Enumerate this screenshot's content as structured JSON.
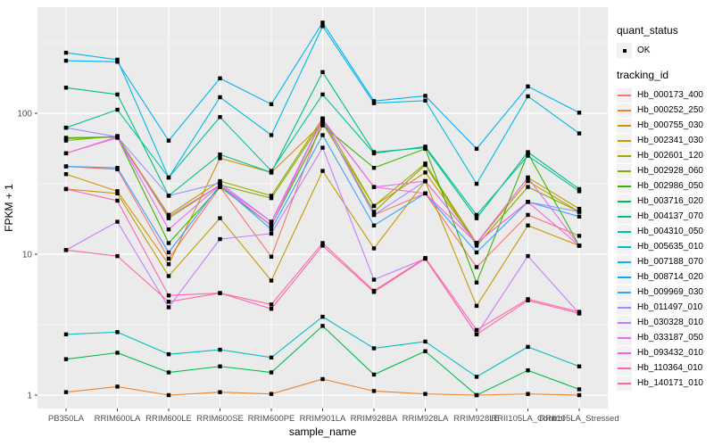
{
  "chart_data": {
    "type": "line",
    "title": "",
    "xlabel": "sample_name",
    "ylabel": "FPKM + 1",
    "yscale": "log10",
    "yticks": [
      "1",
      "10",
      "100"
    ],
    "minor_gridlines": [
      3.162,
      31.62,
      316.2
    ],
    "ylim": [
      0.8,
      570
    ],
    "legend_position": "right",
    "panel_bg": "#EBEBEB",
    "grid_color": "#FFFFFF",
    "point_color": "#000000",
    "tick_text_color": "#4D4D4D",
    "categories": [
      "PB350LA",
      "RRIM600LA",
      "RRIM600LE",
      "RRIM600SE",
      "RRIM600PE",
      "RRIM901LA",
      "RRIM928BA",
      "RRIM928LA",
      "RRIM928LE",
      "RRII105LA_Control",
      "RRII105LA_Stressed"
    ],
    "series": [
      {
        "name": "Hb_000173_400",
        "color": "#F8766D",
        "values": [
          42,
          40,
          9.3,
          30,
          9.6,
          90,
          19,
          27,
          8.1,
          19,
          13.5
        ]
      },
      {
        "name": "Hb_000252_250",
        "color": "#EA8331",
        "values": [
          1.05,
          1.15,
          1.0,
          1.05,
          1.02,
          1.3,
          1.07,
          1.02,
          1.0,
          1.02,
          1.0
        ]
      },
      {
        "name": "Hb_000755_030",
        "color": "#D89000",
        "values": [
          37,
          28,
          8.5,
          48,
          38,
          85,
          22,
          38,
          12,
          33,
          20
        ]
      },
      {
        "name": "Hb_002341_030",
        "color": "#C09B00",
        "values": [
          29,
          27,
          7.0,
          18,
          6.5,
          39,
          11,
          33,
          4.3,
          16,
          11.5
        ]
      },
      {
        "name": "Hb_002601_120",
        "color": "#A3A500",
        "values": [
          66,
          68,
          19,
          33,
          26,
          92,
          22,
          44,
          12,
          35,
          21
        ]
      },
      {
        "name": "Hb_002928_060",
        "color": "#7CAE00",
        "values": [
          64,
          69,
          18,
          31,
          25,
          88,
          20,
          43,
          11.5,
          30,
          20
        ]
      },
      {
        "name": "Hb_002986_050",
        "color": "#39B600",
        "values": [
          67,
          68,
          12,
          30,
          16,
          82,
          41,
          56,
          6.3,
          52,
          11.5
        ]
      },
      {
        "name": "Hb_003716_020",
        "color": "#00BB4E",
        "values": [
          1.8,
          2.0,
          1.45,
          1.6,
          1.45,
          3.1,
          1.4,
          2.05,
          1.0,
          1.5,
          1.1
        ]
      },
      {
        "name": "Hb_004137_070",
        "color": "#00BF7D",
        "values": [
          152,
          136,
          26,
          51,
          38,
          196,
          53,
          57,
          18,
          53,
          29
        ]
      },
      {
        "name": "Hb_004310_050",
        "color": "#00C1A3",
        "values": [
          79,
          106,
          35,
          94,
          39,
          136,
          52,
          58,
          19,
          50,
          28
        ]
      },
      {
        "name": "Hb_005635_010",
        "color": "#00BFC4",
        "values": [
          2.7,
          2.8,
          1.95,
          2.1,
          1.85,
          3.6,
          2.15,
          2.4,
          1.35,
          2.2,
          1.6
        ]
      },
      {
        "name": "Hb_007188_070",
        "color": "#00BAE0",
        "values": [
          269,
          240,
          35,
          130,
          70,
          415,
          118,
          123,
          31.6,
          132,
          72
        ]
      },
      {
        "name": "Hb_008714_020",
        "color": "#00B0F6",
        "values": [
          236,
          232,
          64,
          177,
          116,
          440,
          122,
          133,
          56,
          155,
          101
        ]
      },
      {
        "name": "Hb_009969_030",
        "color": "#35A2FF",
        "values": [
          42,
          41,
          10.3,
          31,
          15,
          70,
          16,
          27,
          10.3,
          23.5,
          18.5
        ]
      },
      {
        "name": "Hb_011497_010",
        "color": "#9590FF",
        "values": [
          79,
          68,
          26,
          32,
          17,
          91,
          19,
          33,
          12,
          23.5,
          20
        ]
      },
      {
        "name": "Hb_030328_010",
        "color": "#C77CFF",
        "values": [
          10.7,
          17,
          4.2,
          12.8,
          14,
          57,
          6.6,
          9.3,
          2.7,
          9.7,
          3.8
        ]
      },
      {
        "name": "Hb_033187_050",
        "color": "#E76BF3",
        "values": [
          52,
          68,
          15,
          31,
          16,
          91,
          30,
          33,
          12,
          35,
          11.5
        ]
      },
      {
        "name": "Hb_093432_010",
        "color": "#FA62DB",
        "values": [
          52,
          67,
          18.5,
          31,
          17,
          90,
          30,
          27,
          12,
          23.5,
          11.5
        ]
      },
      {
        "name": "Hb_110364_010",
        "color": "#FF62BC",
        "values": [
          29,
          24,
          5.1,
          5.3,
          4.1,
          11.5,
          5.4,
          9.3,
          2.7,
          4.7,
          3.8
        ]
      },
      {
        "name": "Hb_140171_010",
        "color": "#FF6A98",
        "values": [
          10.7,
          9.7,
          4.6,
          5.3,
          4.4,
          12,
          5.5,
          9.4,
          2.9,
          4.8,
          3.9
        ]
      }
    ],
    "legend_quant": {
      "title": "quant_status",
      "items": [
        "OK"
      ]
    },
    "legend_tracking": {
      "title": "tracking_id"
    }
  }
}
